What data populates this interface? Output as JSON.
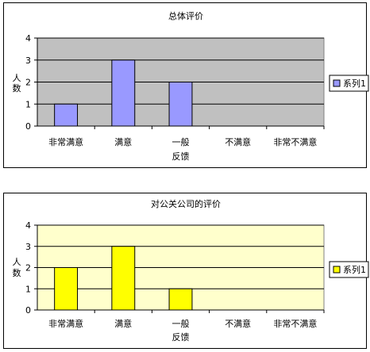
{
  "chart_data": [
    {
      "type": "bar",
      "title": "总体评价",
      "xlabel": "反馈",
      "ylabel": "人数",
      "categories": [
        "非常满意",
        "满意",
        "一般",
        "不满意",
        "非常不满意"
      ],
      "series": [
        {
          "name": "系列1",
          "values": [
            1,
            3,
            2,
            0,
            0
          ]
        }
      ],
      "ylim": [
        0,
        4
      ],
      "yticks": [
        0,
        1,
        2,
        3,
        4
      ],
      "grid": true,
      "legend": "right",
      "plot_background": "#c0c0c0",
      "bar_color": "#9999ff"
    },
    {
      "type": "bar",
      "title": "对公关公司的评价",
      "xlabel": "反馈",
      "ylabel": "人数",
      "categories": [
        "非常满意",
        "满意",
        "一般",
        "不满意",
        "非常不满意"
      ],
      "series": [
        {
          "name": "系列1",
          "values": [
            2,
            3,
            1,
            0,
            0
          ]
        }
      ],
      "ylim": [
        0,
        4
      ],
      "yticks": [
        0,
        1,
        2,
        3,
        4
      ],
      "grid": true,
      "legend": "right",
      "plot_background": "#ffffcc",
      "bar_color": "#ffff00"
    }
  ]
}
